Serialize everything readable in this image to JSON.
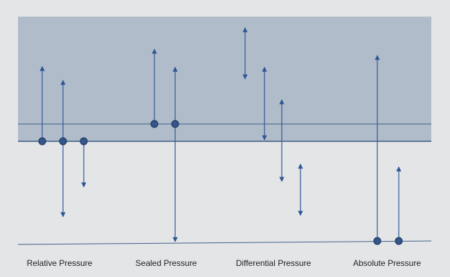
{
  "captions": {
    "relative": "Relative Pressure",
    "sealed": "Sealed Pressure",
    "differential": "Differential Pressure",
    "absolute": "Absolute Pressure"
  },
  "colors": {
    "background": "#e3e5e7",
    "upper_band": "#b0bcc9",
    "line": "#3f5e86",
    "arrow": "#2f5597",
    "marker_fill": "#34568a",
    "marker_stroke": "#1f3a63"
  }
}
